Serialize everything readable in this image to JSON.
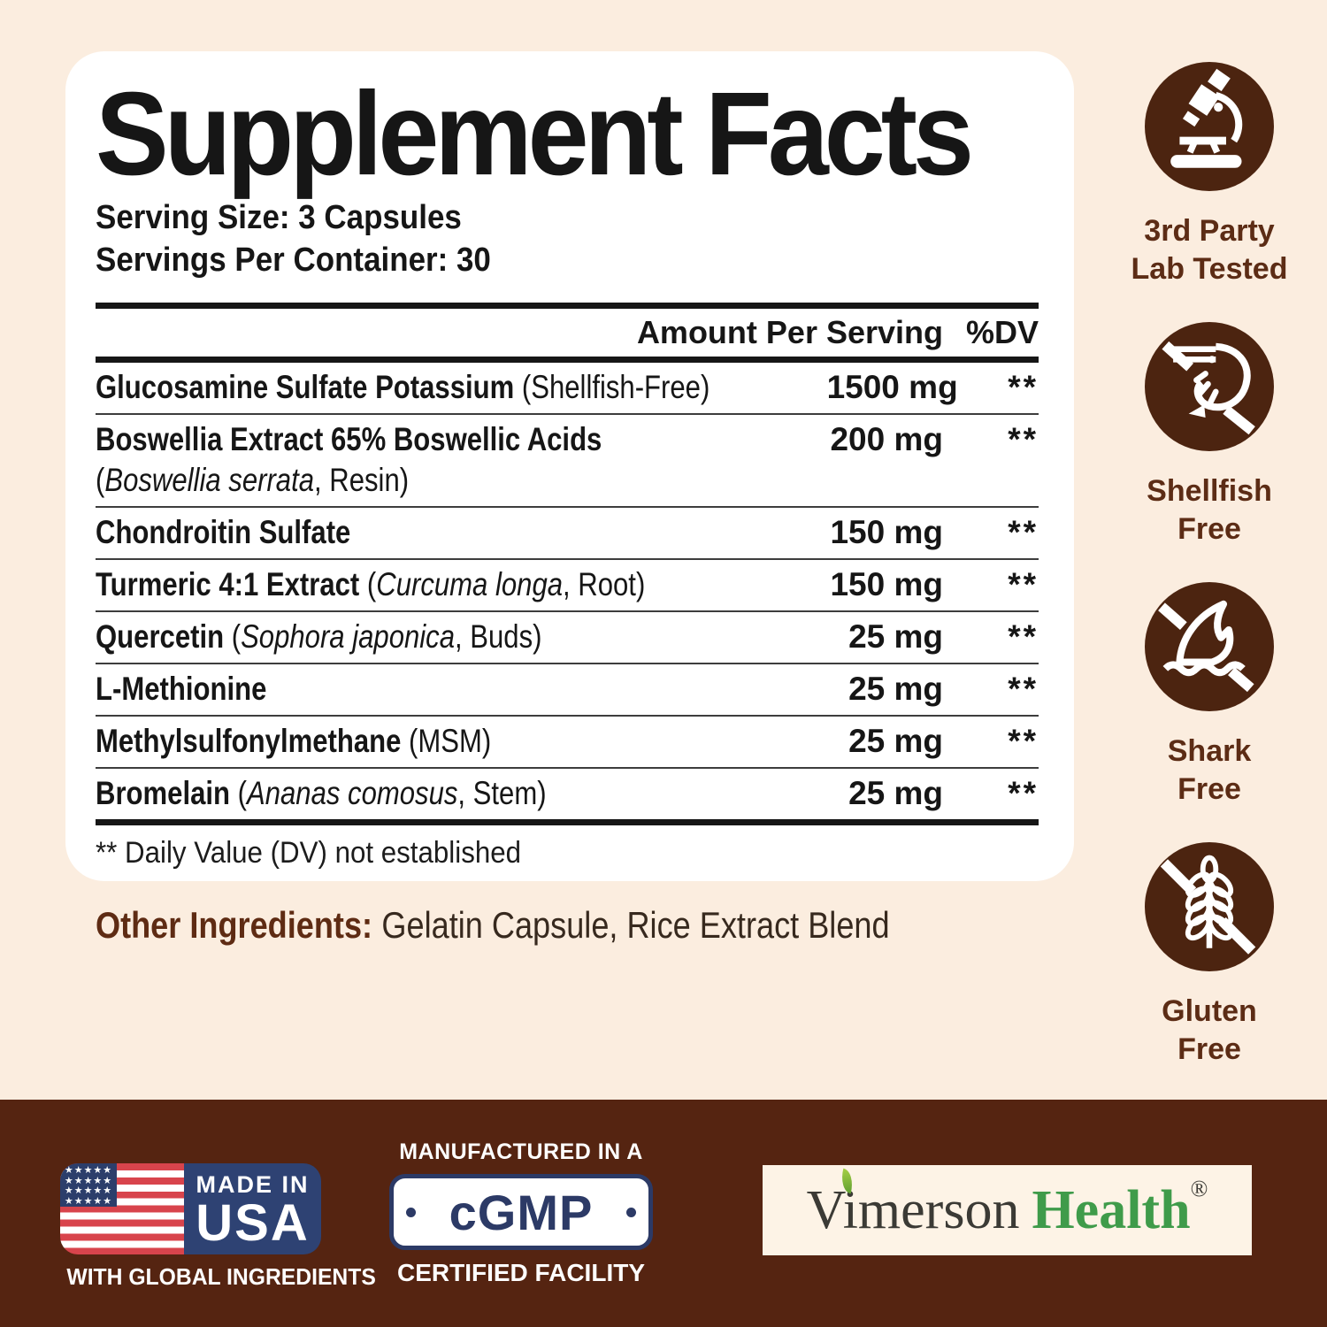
{
  "panel": {
    "title": "Supplement Facts",
    "serving_size": "Serving Size: 3 Capsules",
    "servings_per_container": "Servings Per Container: 30",
    "columns": {
      "amount": "Amount Per Serving",
      "dv": "%DV"
    },
    "rows": [
      {
        "segments": [
          {
            "t": "Glucosamine Sulfate Potassium",
            "s": "b"
          },
          {
            "t": " (Shellfish-Free)",
            "s": "r"
          }
        ],
        "amount": "1500 mg",
        "dv": "**"
      },
      {
        "segments": [
          {
            "t": "Boswellia Extract 65% Boswellic Acids",
            "s": "b"
          }
        ],
        "segments2": [
          {
            "t": "(",
            "s": "r"
          },
          {
            "t": "Boswellia serrata",
            "s": "i"
          },
          {
            "t": ", Resin)",
            "s": "r"
          }
        ],
        "amount": "200 mg",
        "dv": "**"
      },
      {
        "segments": [
          {
            "t": "Chondroitin Sulfate",
            "s": "b"
          }
        ],
        "amount": "150 mg",
        "dv": "**"
      },
      {
        "segments": [
          {
            "t": "Turmeric 4:1 Extract",
            "s": "b"
          },
          {
            "t": " (",
            "s": "r"
          },
          {
            "t": "Curcuma longa",
            "s": "i"
          },
          {
            "t": ", Root)",
            "s": "r"
          }
        ],
        "amount": "150 mg",
        "dv": "**"
      },
      {
        "segments": [
          {
            "t": "Quercetin",
            "s": "b"
          },
          {
            "t": " (",
            "s": "r"
          },
          {
            "t": "Sophora japonica",
            "s": "i"
          },
          {
            "t": ", Buds)",
            "s": "r"
          }
        ],
        "amount": "25 mg",
        "dv": "**"
      },
      {
        "segments": [
          {
            "t": "L-Methionine",
            "s": "b"
          }
        ],
        "amount": "25 mg",
        "dv": "**"
      },
      {
        "segments": [
          {
            "t": "Methylsulfonylmethane",
            "s": "b"
          },
          {
            "t": " (MSM)",
            "s": "r"
          }
        ],
        "amount": "25 mg",
        "dv": "**"
      },
      {
        "segments": [
          {
            "t": "Bromelain",
            "s": "b"
          },
          {
            "t": " (",
            "s": "r"
          },
          {
            "t": "Ananas comosus",
            "s": "i"
          },
          {
            "t": ", Stem)",
            "s": "r"
          }
        ],
        "amount": "25 mg",
        "dv": "**"
      }
    ],
    "footnote": "** Daily Value (DV) not established",
    "other_ingredients_label": "Other Ingredients:",
    "other_ingredients_value": "Gelatin Capsule, Rice Extract Blend"
  },
  "badges": [
    {
      "icon": "microscope-icon",
      "label_lines": [
        "3rd Party",
        "Lab Tested"
      ]
    },
    {
      "icon": "shellfish-free-icon",
      "label_lines": [
        "Shellfish",
        "Free"
      ]
    },
    {
      "icon": "shark-free-icon",
      "label_lines": [
        "Shark",
        "Free"
      ]
    },
    {
      "icon": "gluten-free-icon",
      "label_lines": [
        "Gluten",
        "Free"
      ]
    }
  ],
  "footer": {
    "made_in": "MADE IN",
    "usa": "USA",
    "flag_stars": "★★★★★",
    "with_global": "WITH GLOBAL INGREDIENTS",
    "manufactured": "MANUFACTURED IN A",
    "cgmp": "cGMP",
    "certified": "CERTIFIED FACILITY",
    "brand_name_1": "Vimerson",
    "brand_name_2": "Health",
    "brand_reg": "®"
  },
  "colors": {
    "background": "#fbeddf",
    "panel": "#ffffff",
    "ink": "#161616",
    "brand_brown": "#4c2410",
    "footer_brown": "#552411",
    "accent_brown_text": "#5c2c15",
    "navy": "#2e4273",
    "flag_red": "#d8444c",
    "brand_green": "#3f9b4a"
  }
}
